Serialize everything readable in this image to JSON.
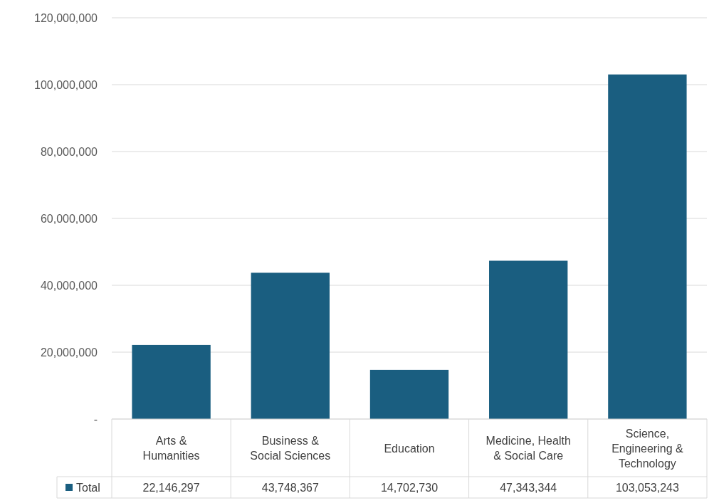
{
  "chart_data": {
    "type": "bar",
    "categories": [
      "Arts & Humanities",
      "Business & Social Sciences",
      "Education",
      "Medicine, Health & Social Care",
      "Science, Engineering & Technology"
    ],
    "series": [
      {
        "name": "Total",
        "color": "#1a5e80",
        "values": [
          22146297,
          43748367,
          14702730,
          47343344,
          103053243
        ],
        "value_labels": [
          "22,146,297",
          "43,748,367",
          "14,702,730",
          "47,343,344",
          "103,053,243"
        ]
      }
    ],
    "ylim": [
      0,
      120000000
    ],
    "yticks": [
      {
        "value": 0,
        "label": "-"
      },
      {
        "value": 20000000,
        "label": "20,000,000"
      },
      {
        "value": 40000000,
        "label": "40,000,000"
      },
      {
        "value": 60000000,
        "label": "60,000,000"
      },
      {
        "value": 80000000,
        "label": "80,000,000"
      },
      {
        "value": 100000000,
        "label": "100,000,000"
      },
      {
        "value": 120000000,
        "label": "120,000,000"
      }
    ],
    "grid": "y",
    "legend": "bottom"
  }
}
